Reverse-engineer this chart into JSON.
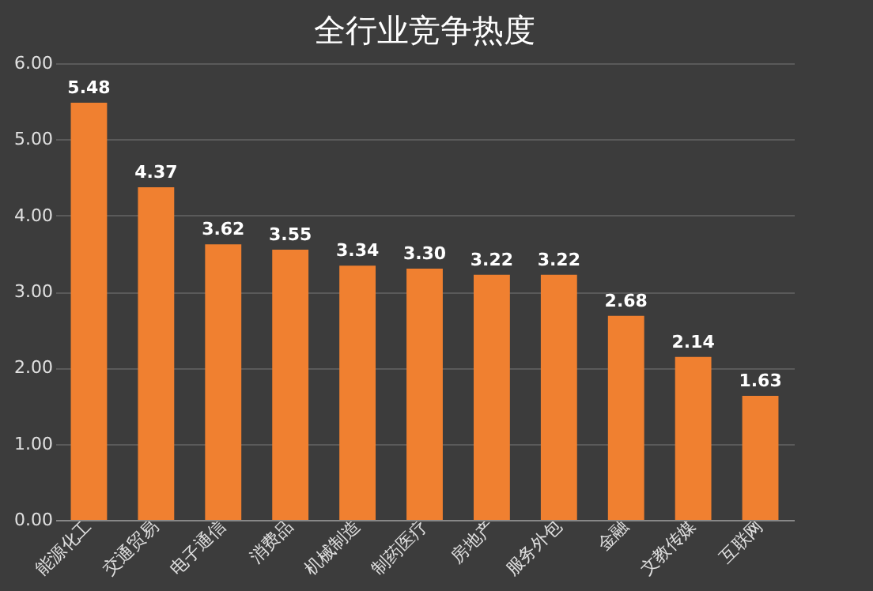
{
  "chart_data": {
    "type": "bar",
    "title": "全行业竞争热度",
    "categories": [
      "能源化工",
      "交通贸易",
      "电子通信",
      "消费品",
      "机械制造",
      "制药医疗",
      "房地产",
      "服务外包",
      "金融",
      "文教传媒",
      "互联网"
    ],
    "values": [
      5.48,
      4.37,
      3.62,
      3.55,
      3.34,
      3.3,
      3.22,
      3.22,
      2.68,
      2.14,
      1.63
    ],
    "value_labels": [
      "5.48",
      "4.37",
      "3.62",
      "3.55",
      "3.34",
      "3.30",
      "3.22",
      "3.22",
      "2.68",
      "2.14",
      "1.63"
    ],
    "color": "#f08030",
    "ylim": [
      0,
      6
    ],
    "yticks": [
      {
        "value": 0,
        "label": "0.00"
      },
      {
        "value": 1,
        "label": "1.00"
      },
      {
        "value": 2,
        "label": "2.00"
      },
      {
        "value": 3,
        "label": "3.00"
      },
      {
        "value": 4,
        "label": "4.00"
      },
      {
        "value": 5,
        "label": "5.00"
      },
      {
        "value": 6,
        "label": "6.00"
      }
    ],
    "grid": "y"
  }
}
